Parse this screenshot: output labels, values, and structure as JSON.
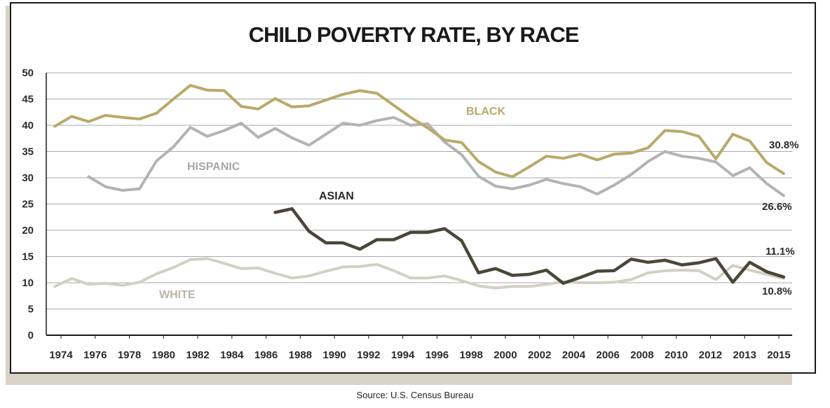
{
  "chart_data": {
    "type": "line",
    "title": "CHILD POVERTY RATE, BY RACE",
    "source": "Source: U.S. Census Bureau",
    "xlabel": "",
    "ylabel": "",
    "ylim": [
      0,
      50
    ],
    "yticks": [
      "0",
      "5",
      "10",
      "15",
      "20",
      "25",
      "30",
      "35",
      "40",
      "45",
      "50"
    ],
    "xticks": [
      "1974",
      "1976",
      "1978",
      "1980",
      "1982",
      "1984",
      "1986",
      "1988",
      "1990",
      "1992",
      "1994",
      "1996",
      "1998",
      "2000",
      "2002",
      "2004",
      "2006",
      "2008",
      "2010",
      "2012",
      "2013",
      "2015"
    ],
    "grid": true,
    "series": [
      {
        "name": "BLACK",
        "color": "#b9a96a",
        "x": [
          1974,
          1975,
          1976,
          1977,
          1978,
          1979,
          1980,
          1981,
          1982,
          1983,
          1984,
          1985,
          1986,
          1987,
          1988,
          1989,
          1990,
          1991,
          1992,
          1993,
          1994,
          1995,
          1996,
          1997,
          1998,
          1999,
          2000,
          2001,
          2002,
          2003,
          2004,
          2005,
          2006,
          2007,
          2008,
          2009,
          2010,
          2011,
          2012,
          2013,
          2014,
          2015,
          2016,
          2017
        ],
        "values": [
          39.8,
          41.7,
          40.7,
          41.9,
          41.5,
          41.2,
          42.3,
          45.0,
          47.6,
          46.7,
          46.6,
          43.6,
          43.1,
          45.1,
          43.5,
          43.7,
          44.8,
          45.9,
          46.6,
          46.1,
          43.8,
          41.5,
          39.5,
          37.2,
          36.7,
          33.1,
          31.1,
          30.2,
          32.1,
          34.1,
          33.7,
          34.5,
          33.4,
          34.5,
          34.7,
          35.7,
          39.0,
          38.8,
          37.9,
          33.6,
          38.3,
          37.0,
          32.9,
          30.8
        ]
      },
      {
        "name": "HISPANIC",
        "color": "#b3b3b3",
        "x": [
          1976,
          1977,
          1978,
          1979,
          1980,
          1981,
          1982,
          1983,
          1984,
          1985,
          1986,
          1987,
          1988,
          1989,
          1990,
          1991,
          1992,
          1993,
          1994,
          1995,
          1996,
          1997,
          1998,
          1999,
          2000,
          2001,
          2002,
          2003,
          2004,
          2005,
          2006,
          2007,
          2008,
          2009,
          2010,
          2011,
          2012,
          2013,
          2014,
          2015,
          2016,
          2017
        ],
        "values": [
          30.2,
          28.3,
          27.6,
          27.9,
          33.2,
          35.9,
          39.6,
          37.9,
          39.0,
          40.4,
          37.7,
          39.4,
          37.6,
          36.2,
          38.3,
          40.4,
          40.0,
          40.9,
          41.5,
          40.0,
          40.3,
          36.8,
          34.4,
          30.3,
          28.4,
          27.9,
          28.6,
          29.7,
          28.9,
          28.3,
          26.9,
          28.6,
          30.6,
          33.1,
          35.0,
          34.1,
          33.7,
          33.0,
          30.4,
          31.9,
          28.9,
          26.6
        ]
      },
      {
        "name": "ASIAN",
        "color": "#4a4638",
        "x": [
          1987,
          1988,
          1989,
          1990,
          1991,
          1992,
          1993,
          1994,
          1995,
          1996,
          1997,
          1998,
          1999,
          2000,
          2001,
          2002,
          2003,
          2004,
          2005,
          2006,
          2007,
          2008,
          2009,
          2010,
          2011,
          2012,
          2013,
          2014,
          2015,
          2016,
          2017
        ],
        "values": [
          23.4,
          24.1,
          19.8,
          17.6,
          17.6,
          16.4,
          18.2,
          18.2,
          19.6,
          19.6,
          20.3,
          18.0,
          11.9,
          12.7,
          11.4,
          11.6,
          12.4,
          9.9,
          11.0,
          12.2,
          12.3,
          14.5,
          13.9,
          14.3,
          13.4,
          13.8,
          14.6,
          10.1,
          13.9,
          12.1,
          11.1
        ]
      },
      {
        "name": "WHITE",
        "color": "#d3cfc3",
        "x": [
          1974,
          1975,
          1976,
          1977,
          1978,
          1979,
          1980,
          1981,
          1982,
          1983,
          1984,
          1985,
          1986,
          1987,
          1988,
          1989,
          1990,
          1991,
          1992,
          1993,
          1994,
          1995,
          1996,
          1997,
          1998,
          1999,
          2000,
          2001,
          2002,
          2003,
          2004,
          2005,
          2006,
          2007,
          2008,
          2009,
          2010,
          2011,
          2012,
          2013,
          2014,
          2015,
          2016,
          2017
        ],
        "values": [
          9.3,
          10.8,
          9.7,
          9.9,
          9.5,
          10.1,
          11.7,
          12.9,
          14.4,
          14.6,
          13.7,
          12.7,
          12.8,
          11.8,
          10.9,
          11.3,
          12.2,
          13.0,
          13.1,
          13.5,
          12.3,
          10.9,
          10.9,
          11.3,
          10.4,
          9.4,
          9.0,
          9.3,
          9.3,
          9.7,
          10.2,
          10.0,
          10.0,
          10.1,
          10.6,
          11.9,
          12.3,
          12.4,
          12.3,
          10.6,
          13.3,
          12.4,
          11.6,
          10.8
        ]
      }
    ],
    "series_labels": {
      "black": "BLACK",
      "hispanic": "HISPANIC",
      "asian": "ASIAN",
      "white": "WHITE"
    },
    "end_labels": {
      "black": "30.8%",
      "hispanic": "26.6%",
      "asian": "11.1%",
      "white": "10.8%"
    }
  }
}
